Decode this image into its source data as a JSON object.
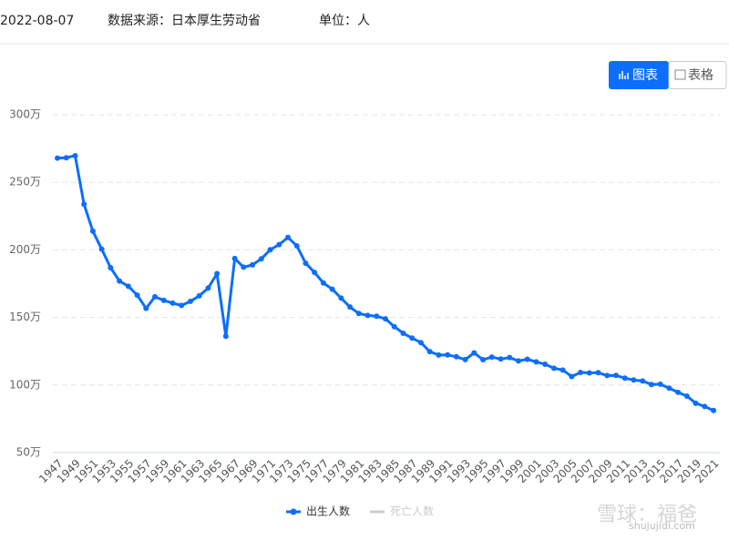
{
  "header": {
    "date": "2022-08-07",
    "source": "数据来源：日本厚生劳动省",
    "unit": "单位：人"
  },
  "buttons": {
    "chart": "图表",
    "table": "表格"
  },
  "watermark": {
    "name": "雪球：福爸",
    "site": "shujujidi.com"
  },
  "chart_data": {
    "type": "line",
    "categories": [
      "1947",
      null,
      "1949",
      null,
      "1951",
      null,
      "1953",
      null,
      "1955",
      null,
      "1957",
      null,
      "1959",
      null,
      "1961",
      null,
      "1963",
      null,
      "1965",
      null,
      "1967",
      null,
      "1969",
      null,
      "1971",
      null,
      "1973",
      null,
      "1975",
      null,
      "1977",
      null,
      "1979",
      null,
      "1981",
      null,
      "1983",
      null,
      "1985",
      null,
      "1987",
      null,
      "1989",
      null,
      "1991",
      null,
      "1993",
      null,
      "1995",
      null,
      "1997",
      null,
      "1999",
      null,
      "2001",
      null,
      "2003",
      null,
      "2005",
      null,
      "2007",
      null,
      "2009",
      null,
      "2011",
      null,
      "2013",
      null,
      "2015",
      null,
      "2017",
      null,
      "2019",
      null,
      "2021"
    ],
    "series": [
      {
        "name": "出生人数",
        "color": "#0d6efd",
        "values": [
          267.9,
          268.2,
          269.7,
          233.8,
          213.8,
          200.5,
          186.8,
          176.9,
          173.1,
          166.5,
          156.7,
          165.3,
          162.6,
          160.6,
          158.9,
          161.9,
          166.0,
          171.7,
          182.4,
          136.1,
          193.6,
          187.2,
          188.9,
          193.4,
          200.1,
          203.9,
          209.2,
          203.0,
          190.1,
          183.3,
          175.5,
          170.9,
          164.3,
          157.7,
          152.9,
          151.5,
          150.9,
          149.0,
          143.2,
          138.3,
          134.7,
          131.4,
          124.7,
          122.2,
          122.3,
          120.9,
          118.8,
          123.8,
          118.7,
          120.7,
          119.2,
          120.3,
          117.8,
          119.1,
          117.1,
          115.4,
          112.4,
          111.1,
          106.3,
          109.3,
          109.0,
          109.1,
          107.0,
          107.1,
          105.1,
          103.7,
          103.0,
          100.4,
          100.6,
          97.7,
          94.6,
          91.8,
          86.5,
          84.1,
          81.2
        ]
      }
    ],
    "inactive_legend": {
      "name": "死亡人数",
      "color": "#cccccc"
    },
    "ylim": [
      50,
      300
    ],
    "yticks": [
      {
        "value": 50,
        "label": "50万"
      },
      {
        "value": 100,
        "label": "100万"
      },
      {
        "value": 150,
        "label": "150万"
      },
      {
        "value": 200,
        "label": "200万"
      },
      {
        "value": 250,
        "label": "250万"
      },
      {
        "value": 300,
        "label": "300万"
      }
    ],
    "grid": true
  }
}
